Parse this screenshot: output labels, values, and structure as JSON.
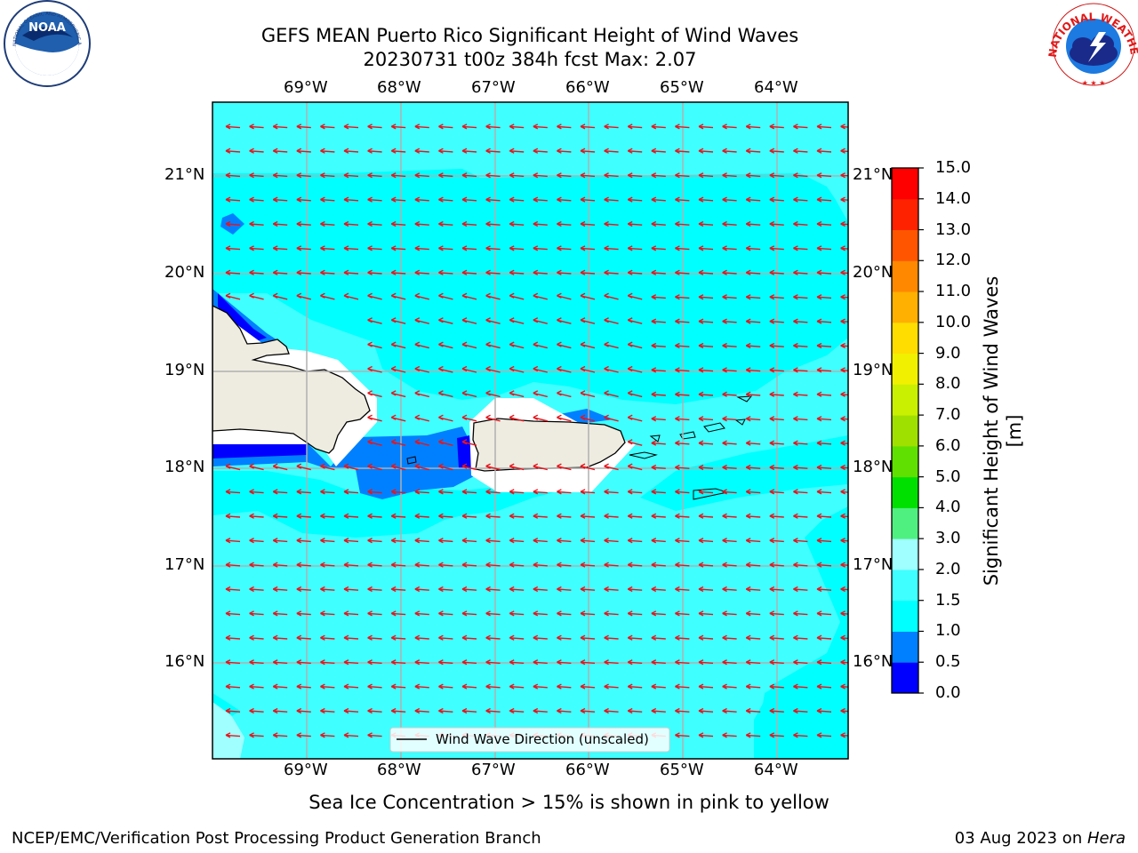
{
  "title": {
    "line1": "GEFS MEAN Puerto Rico Significant Height of Wind Waves",
    "line2": "20230731 t00z 384h fcst   Max: 2.07"
  },
  "map": {
    "lon_ticks": [
      "69°W",
      "68°W",
      "67°W",
      "66°W",
      "65°W",
      "64°W"
    ],
    "lat_ticks_left": [
      "21°N",
      "20°N",
      "19°N",
      "18°N",
      "17°N",
      "16°N"
    ],
    "lat_ticks_right": [
      "21°N",
      "20°N",
      "19°N",
      "18°N",
      "17°N",
      "16°N"
    ],
    "extent": {
      "lon": [
        -70.0,
        -63.25
      ],
      "lat": [
        15.0,
        21.75
      ]
    },
    "legend_label": "Wind Wave Direction (unscaled)",
    "vector_color": "#e8141c",
    "land_color": "#eeece1",
    "dominant_color": "#00ffff"
  },
  "colorbar": {
    "label": "Significant Height of Wind Waves [m]",
    "ticks": [
      "0.0",
      "0.5",
      "1.0",
      "1.5",
      "2.0",
      "3.0",
      "4.0",
      "5.0",
      "6.0",
      "7.0",
      "8.0",
      "9.0",
      "10.0",
      "11.0",
      "12.0",
      "13.0",
      "14.0",
      "15.0"
    ],
    "colors": [
      "#0000ff",
      "#0080ff",
      "#00ffff",
      "#40ffff",
      "#a0ffff",
      "#50f080",
      "#00e000",
      "#60e000",
      "#a0e000",
      "#c8f000",
      "#f0f000",
      "#ffdd00",
      "#ffb000",
      "#ff8800",
      "#ff5500",
      "#ff2200",
      "#ff0000"
    ]
  },
  "logos": {
    "noaa_text": "NOAA",
    "noaa_ring": "NATIONAL OCEANIC AND ATMOSPHERIC ADMINISTRATION · U.S. DEPARTMENT OF COMMERCE",
    "nws_ring": "NATIONAL WEATHER SERVICE"
  },
  "footnote": "Sea Ice Concentration > 15% is shown in pink to yellow",
  "credit": "NCEP/EMC/Verification Post Processing Product Generation Branch",
  "date": {
    "text": "03 Aug 2023 on ",
    "system": "Hera"
  }
}
